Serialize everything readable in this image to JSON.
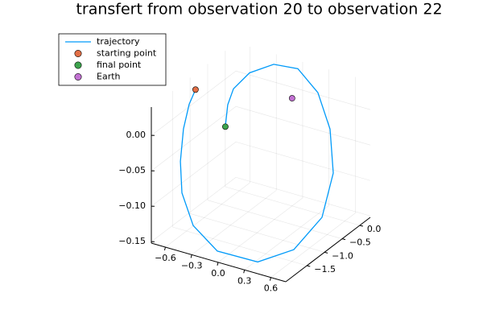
{
  "chart_data": {
    "type": "line3d",
    "title": "transfert from observation 20 to observation 22",
    "xlim": [
      -0.76,
      0.77
    ],
    "ylim": [
      -2.1,
      0.3
    ],
    "zlim": [
      -0.152,
      0.04
    ],
    "xticks": [
      {
        "value": -0.6,
        "label": "−0.6"
      },
      {
        "value": -0.3,
        "label": "−0.3"
      },
      {
        "value": 0,
        "label": "0.0"
      },
      0.3,
      0.6
    ],
    "yticks": [
      {
        "value": 0,
        "label": "0.0"
      },
      {
        "value": -0.5,
        "label": "−0.5"
      },
      {
        "value": -1,
        "label": "−1.0"
      },
      {
        "value": -1.5,
        "label": "−1.5"
      }
    ],
    "zticks": [
      {
        "value": 0,
        "label": "0.00"
      },
      {
        "value": -0.05,
        "label": "−0.05"
      },
      {
        "value": -0.1,
        "label": "−0.10"
      },
      {
        "value": -0.15,
        "label": "−0.15"
      }
    ],
    "grid": true,
    "legend": "top-left",
    "series": [
      {
        "name": "trajectory",
        "type": "line",
        "color": "#009af9",
        "x": [
          -0.661,
          -0.647,
          -0.635,
          -0.622,
          -0.575,
          -0.428,
          -0.105,
          0.354,
          0.573,
          0.701,
          0.637,
          0.456,
          0.222,
          -0.035,
          -0.281,
          -0.489,
          -0.595,
          -0.583,
          -0.543
        ],
        "y": [
          -1.092,
          -1.308,
          -1.5,
          -1.62,
          -1.692,
          -1.74,
          -1.86,
          -1.86,
          -1.38,
          -0.9,
          -0.42,
          -0.06,
          0.18,
          0.252,
          0.18,
          0.012,
          -0.18,
          -0.372,
          -0.54
        ],
        "z": [
          0.03,
          0.018,
          -0.009,
          -0.05,
          -0.09,
          -0.129,
          -0.149,
          -0.148,
          -0.141,
          -0.109,
          -0.067,
          -0.025,
          0.009,
          0.031,
          0.031,
          0.018,
          -0.001,
          -0.016,
          -0.039
        ]
      },
      {
        "name": "starting point",
        "type": "scatter",
        "color": "#e26f46",
        "x": [
          -0.661
        ],
        "y": [
          -1.092
        ],
        "z": [
          0.03
        ]
      },
      {
        "name": "final point",
        "type": "scatter",
        "color": "#3da44d",
        "x": [
          -0.543
        ],
        "y": [
          -0.54
        ],
        "z": [
          -0.039
        ]
      },
      {
        "name": "Earth",
        "type": "scatter",
        "color": "#c271d2",
        "x": [
          0
        ],
        "y": [
          0
        ],
        "z": [
          0
        ]
      }
    ]
  }
}
